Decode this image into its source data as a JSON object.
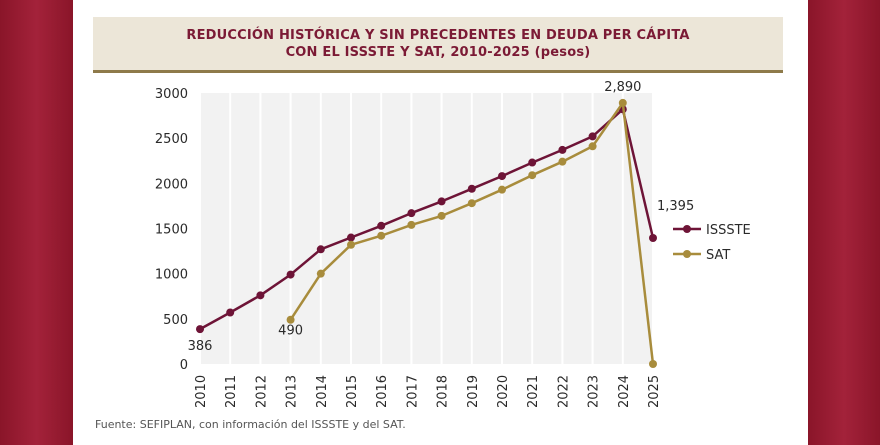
{
  "title_lines": [
    "REDUCCIÓN HISTÓRICA Y SIN PRECEDENTES EN DEUDA PER CÁPITA",
    "CON EL ISSSTE Y SAT, 2010-2025 (pesos)"
  ],
  "source": "Fuente: SEFIPLAN, con información del ISSSTE y del SAT.",
  "colors": {
    "issste": "#6e1437",
    "sat": "#a88c3c",
    "grid": "#cfcfcf",
    "frame": "#ffffff",
    "title": "#7b1a35"
  },
  "chart_data": {
    "type": "line",
    "title": "REDUCCIÓN HISTÓRICA Y SIN PRECEDENTES EN DEUDA PER CÁPITA CON EL ISSSTE Y SAT, 2010-2025 (pesos)",
    "categories": [
      "2010",
      "2011",
      "2012",
      "2013",
      "2014",
      "2015",
      "2016",
      "2017",
      "2018",
      "2019",
      "2020",
      "2021",
      "2022",
      "2023",
      "2024",
      "2025"
    ],
    "ylim": [
      0,
      3000
    ],
    "yticks": [
      "0",
      "500",
      "1000",
      "1500",
      "2000",
      "2500",
      "3000"
    ],
    "grid": "vertical",
    "legend_position": "right",
    "series": [
      {
        "name": "ISSSTE",
        "values": [
          386,
          570,
          760,
          990,
          1270,
          1400,
          1530,
          1670,
          1800,
          1940,
          2080,
          2230,
          2370,
          2520,
          2820,
          1395
        ]
      },
      {
        "name": "SAT",
        "values": [
          null,
          null,
          null,
          490,
          1000,
          1320,
          1420,
          1540,
          1640,
          1780,
          1930,
          2090,
          2240,
          2410,
          2890,
          0
        ]
      }
    ],
    "annotations": [
      {
        "text": "386",
        "series": "ISSSTE",
        "x": "2010",
        "y": 386
      },
      {
        "text": "490",
        "series": "SAT",
        "x": "2013",
        "y": 490
      },
      {
        "text": "2,890",
        "series": "SAT",
        "x": "2024",
        "y": 2890
      },
      {
        "text": "1,395",
        "series": "ISSSTE",
        "x": "2025",
        "y": 1395
      }
    ]
  }
}
